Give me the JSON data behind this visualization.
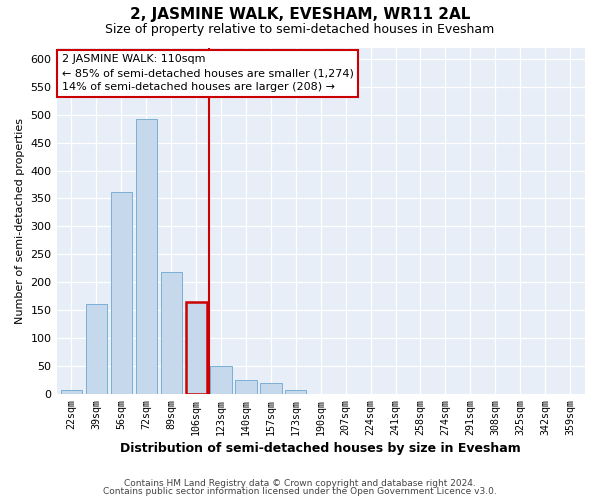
{
  "title": "2, JASMINE WALK, EVESHAM, WR11 2AL",
  "subtitle": "Size of property relative to semi-detached houses in Evesham",
  "xlabel": "Distribution of semi-detached houses by size in Evesham",
  "ylabel": "Number of semi-detached properties",
  "bar_labels": [
    "22sqm",
    "39sqm",
    "56sqm",
    "72sqm",
    "89sqm",
    "106sqm",
    "123sqm",
    "140sqm",
    "157sqm",
    "173sqm",
    "190sqm",
    "207sqm",
    "224sqm",
    "241sqm",
    "258sqm",
    "274sqm",
    "291sqm",
    "308sqm",
    "325sqm",
    "342sqm",
    "359sqm"
  ],
  "bar_values": [
    8,
    162,
    362,
    492,
    219,
    165,
    50,
    25,
    20,
    8,
    1,
    1,
    0,
    0,
    1,
    0,
    0,
    0,
    0,
    0,
    1
  ],
  "bar_color": "#c5d8ec",
  "bar_edge_color": "#7aafd4",
  "highlight_index": 5,
  "highlight_bar_edge_color": "#cc0000",
  "vline_color": "#cc0000",
  "annotation_title": "2 JASMINE WALK: 110sqm",
  "annotation_line1": "← 85% of semi-detached houses are smaller (1,274)",
  "annotation_line2": "14% of semi-detached houses are larger (208) →",
  "annotation_box_color": "#ffffff",
  "annotation_box_edge": "#cc0000",
  "ylim": [
    0,
    620
  ],
  "yticks": [
    0,
    50,
    100,
    150,
    200,
    250,
    300,
    350,
    400,
    450,
    500,
    550,
    600
  ],
  "footer1": "Contains HM Land Registry data © Crown copyright and database right 2024.",
  "footer2": "Contains public sector information licensed under the Open Government Licence v3.0.",
  "bg_color": "#ffffff",
  "plot_bg_color": "#e8eef7"
}
